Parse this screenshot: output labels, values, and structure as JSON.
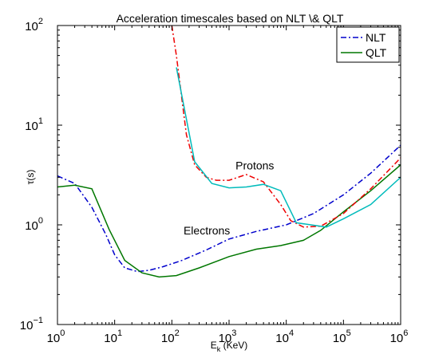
{
  "chart_data": {
    "type": "line",
    "title": "Acceleration timescales based on NLT \\& QLT",
    "xlabel": "E",
    "xlabel_sub": "k",
    "xlabel_unit": " (KeV)",
    "ylabel": "τ(s)",
    "x_scale": "log",
    "y_scale": "log",
    "xlim": [
      1,
      1000000
    ],
    "ylim": [
      0.1,
      100
    ],
    "x_ticks": [
      {
        "base": "10",
        "exp": "0",
        "value": 1
      },
      {
        "base": "10",
        "exp": "1",
        "value": 10
      },
      {
        "base": "10",
        "exp": "2",
        "value": 100
      },
      {
        "base": "10",
        "exp": "3",
        "value": 1000
      },
      {
        "base": "10",
        "exp": "4",
        "value": 10000
      },
      {
        "base": "10",
        "exp": "5",
        "value": 100000
      },
      {
        "base": "10",
        "exp": "6",
        "value": 1000000
      }
    ],
    "y_ticks": [
      {
        "base": "10",
        "exp": "−1",
        "value": 0.1
      },
      {
        "base": "10",
        "exp": "0",
        "value": 1
      },
      {
        "base": "10",
        "exp": "1",
        "value": 10
      },
      {
        "base": "10",
        "exp": "2",
        "value": 100
      }
    ],
    "grid": false,
    "legend_position": "top-right",
    "legend": [
      {
        "label": "NLT",
        "color": "#0000cc",
        "dash": "dash-dot"
      },
      {
        "label": "QLT",
        "color": "#007700",
        "dash": "solid"
      }
    ],
    "annotations": [
      {
        "text": "Protons",
        "x": 1300,
        "y": 3.6
      },
      {
        "text": "Electrons",
        "x": 160,
        "y": 0.8
      }
    ],
    "series": [
      {
        "color": "#0000cc",
        "dash": "dash-dot",
        "x": [
          1,
          2,
          4,
          7,
          10,
          15,
          25,
          40,
          70,
          150,
          400,
          1000,
          3000,
          10000,
          30000,
          100000,
          300000,
          1000000
        ],
        "y": [
          3.1,
          2.6,
          1.5,
          0.8,
          0.5,
          0.37,
          0.34,
          0.35,
          0.38,
          0.44,
          0.56,
          0.72,
          0.86,
          1.0,
          1.3,
          2.0,
          3.3,
          6.3
        ]
      },
      {
        "color": "#007700",
        "dash": "solid",
        "x": [
          1,
          2,
          4,
          8,
          15,
          30,
          60,
          120,
          300,
          1000,
          3000,
          8000,
          20000,
          40000,
          100000,
          300000,
          1000000
        ],
        "y": [
          2.4,
          2.5,
          2.3,
          0.9,
          0.44,
          0.33,
          0.3,
          0.31,
          0.37,
          0.48,
          0.57,
          0.62,
          0.7,
          0.88,
          1.35,
          2.2,
          4.0
        ]
      },
      {
        "color": "#ee0000",
        "dash": "dash-dot",
        "x": [
          100,
          120,
          150,
          180,
          250,
          400,
          600,
          1000,
          2000,
          4000,
          8000,
          12000,
          20000,
          40000,
          100000,
          300000,
          1000000
        ],
        "y": [
          100,
          50,
          18,
          8.0,
          4.0,
          3.0,
          2.8,
          2.8,
          3.2,
          2.7,
          1.6,
          1.1,
          0.95,
          0.97,
          1.3,
          2.3,
          4.7
        ]
      },
      {
        "color": "#00bbbb",
        "dash": "solid",
        "x": [
          120,
          250,
          500,
          1000,
          2000,
          4000,
          8000,
          15000,
          50000,
          100000,
          300000,
          1000000
        ],
        "y": [
          38,
          4.3,
          2.6,
          2.35,
          2.4,
          2.55,
          2.2,
          1.05,
          0.95,
          1.15,
          1.6,
          3.0
        ]
      }
    ]
  }
}
